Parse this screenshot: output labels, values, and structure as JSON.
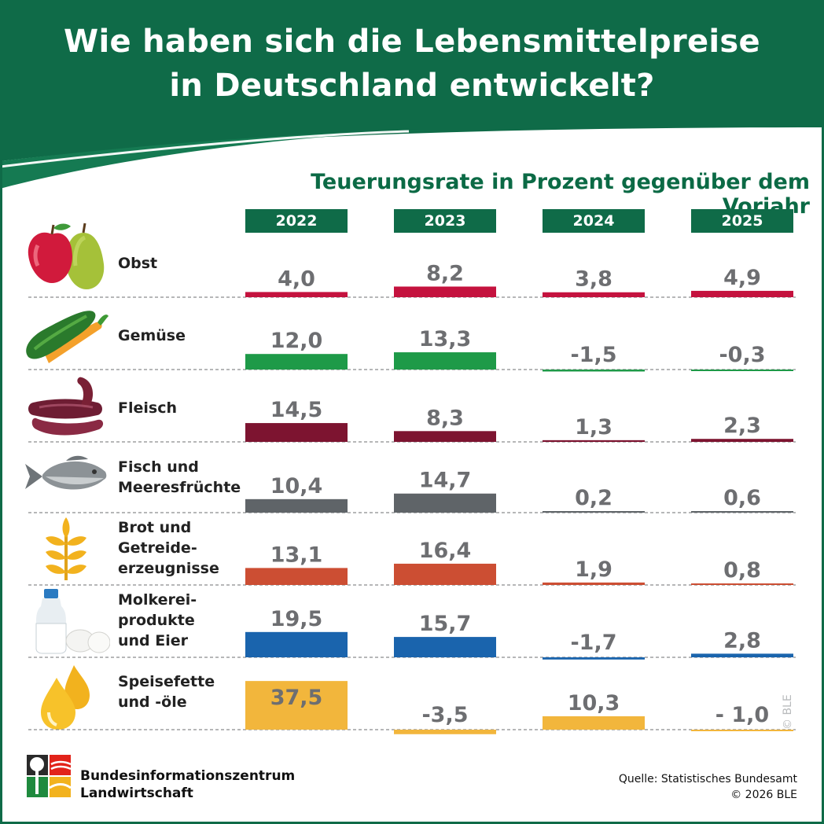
{
  "title_lines": [
    "Wie haben sich die Lebensmittelpreise",
    "in Deutschland entwickelt?"
  ],
  "colors": {
    "brand_green": "#0f6b48",
    "obst": "#c4123e",
    "gemuese": "#1e9a48",
    "fleisch": "#7d1430",
    "fisch": "#5f6468",
    "brot": "#cc4e33",
    "molkerei": "#1a64ad",
    "fette": "#f2b63c",
    "value_text": "#6d6e71"
  },
  "chart_data": {
    "type": "bar",
    "title": "Teuerungsrate in Prozent gegenüber dem Vorjahr",
    "years": [
      "2022",
      "2023",
      "2024",
      "2025"
    ],
    "series": [
      {
        "name": "Obst",
        "label_lines": [
          "Obst"
        ],
        "icon": "apple-pear-icon",
        "color_key": "obst",
        "values": [
          4.0,
          8.2,
          3.8,
          4.9
        ],
        "value_labels": [
          "4,0",
          "8,2",
          "3,8",
          "4,9"
        ]
      },
      {
        "name": "Gemüse",
        "label_lines": [
          "Gemüse"
        ],
        "icon": "cucumber-carrot-icon",
        "color_key": "gemuese",
        "values": [
          12.0,
          13.3,
          -1.5,
          -0.3
        ],
        "value_labels": [
          "12,0",
          "13,3",
          "-1,5",
          "-0,3"
        ]
      },
      {
        "name": "Fleisch",
        "label_lines": [
          "Fleisch"
        ],
        "icon": "sausage-icon",
        "color_key": "fleisch",
        "values": [
          14.5,
          8.3,
          1.3,
          2.3
        ],
        "value_labels": [
          "14,5",
          "8,3",
          "1,3",
          "2,3"
        ]
      },
      {
        "name": "Fisch und Meeresfrüchte",
        "label_lines": [
          "Fisch und",
          "Meeresfrüchte"
        ],
        "icon": "fish-icon",
        "color_key": "fisch",
        "values": [
          10.4,
          14.7,
          0.2,
          0.6
        ],
        "value_labels": [
          "10,4",
          "14,7",
          "0,2",
          "0,6"
        ]
      },
      {
        "name": "Brot und Getreideerzeugnisse",
        "label_lines": [
          "Brot und",
          "Getreide-",
          "erzeugnisse"
        ],
        "icon": "wheat-icon",
        "color_key": "brot",
        "values": [
          13.1,
          16.4,
          1.9,
          0.8
        ],
        "value_labels": [
          "13,1",
          "16,4",
          "1,9",
          "0,8"
        ]
      },
      {
        "name": "Molkereiprodukte und Eier",
        "label_lines": [
          "Molkerei-",
          "produkte",
          "und Eier"
        ],
        "icon": "milk-eggs-icon",
        "color_key": "molkerei",
        "values": [
          19.5,
          15.7,
          -1.7,
          2.8
        ],
        "value_labels": [
          "19,5",
          "15,7",
          "-1,7",
          "2,8"
        ]
      },
      {
        "name": "Speisefette und -öle",
        "label_lines": [
          "Speisefette",
          "und -öle"
        ],
        "icon": "oil-drops-icon",
        "color_key": "fette",
        "values": [
          37.5,
          -3.5,
          10.3,
          -1.0
        ],
        "value_labels": [
          "37,5",
          "-3,5",
          "10,3",
          "- 1,0"
        ]
      }
    ]
  },
  "footer": {
    "org_line1": "Bundesinformationszentrum",
    "org_line2": "Landwirtschaft",
    "source": "Quelle: Statistisches Bundesamt",
    "copyright": "© 2026 BLE",
    "watermark": "© BLE"
  }
}
